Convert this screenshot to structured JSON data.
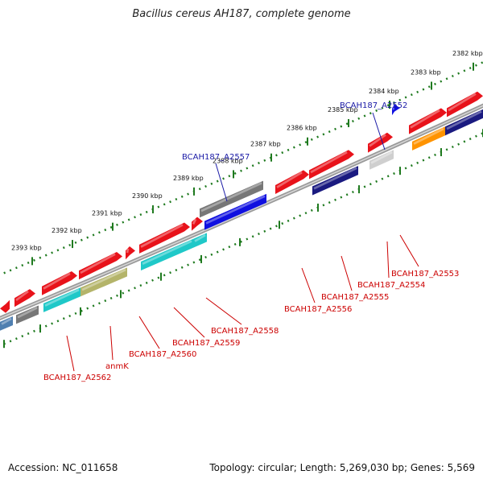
{
  "title": "Bacillus cereus AH187, complete genome",
  "footer": {
    "accession": "Accession: NC_011658",
    "topology": "Topology: circular; Length: 5,269,030 bp; Genes: 5,569"
  },
  "colors": {
    "backbone": "#8a8a8a",
    "ruler": "#1f7a1f",
    "label_blue": "#1a1aa6",
    "label_red": "#cc0000",
    "red": "#e8121a",
    "gray": "#777777",
    "blue": "#1010e0",
    "cyan": "#1fc8c8",
    "olive": "#b4b46a",
    "navy": "#1a1a80",
    "orange": "#ff9300",
    "steel": "#4f7fb0",
    "light_gray": "#cfcfcf"
  },
  "ticks": [
    {
      "label": "2382 kbp"
    },
    {
      "label": "2383 kbp"
    },
    {
      "label": "2384 kbp"
    },
    {
      "label": "2385 kbp"
    },
    {
      "label": "2386 kbp"
    },
    {
      "label": "2387 kbp"
    },
    {
      "label": "2388 kbp"
    },
    {
      "label": "2389 kbp"
    },
    {
      "label": "2390 kbp"
    },
    {
      "label": "2391 kbp"
    },
    {
      "label": "2392 kbp"
    },
    {
      "label": "2393 kbp"
    }
  ],
  "genes": [
    {
      "label": "BCAH187_A2552",
      "color": "label_blue"
    },
    {
      "label": "BCAH187_A2557",
      "color": "label_blue"
    },
    {
      "label": "BCAH187_A2553",
      "color": "label_red"
    },
    {
      "label": "BCAH187_A2554",
      "color": "label_red"
    },
    {
      "label": "BCAH187_A2555",
      "color": "label_red"
    },
    {
      "label": "BCAH187_A2556",
      "color": "label_red"
    },
    {
      "label": "BCAH187_A2558",
      "color": "label_red"
    },
    {
      "label": "BCAH187_A2559",
      "color": "label_red"
    },
    {
      "label": "BCAH187_A2560",
      "color": "label_red"
    },
    {
      "label": "anmK",
      "color": "label_red"
    },
    {
      "label": "BCAH187_A2562",
      "color": "label_red"
    }
  ]
}
